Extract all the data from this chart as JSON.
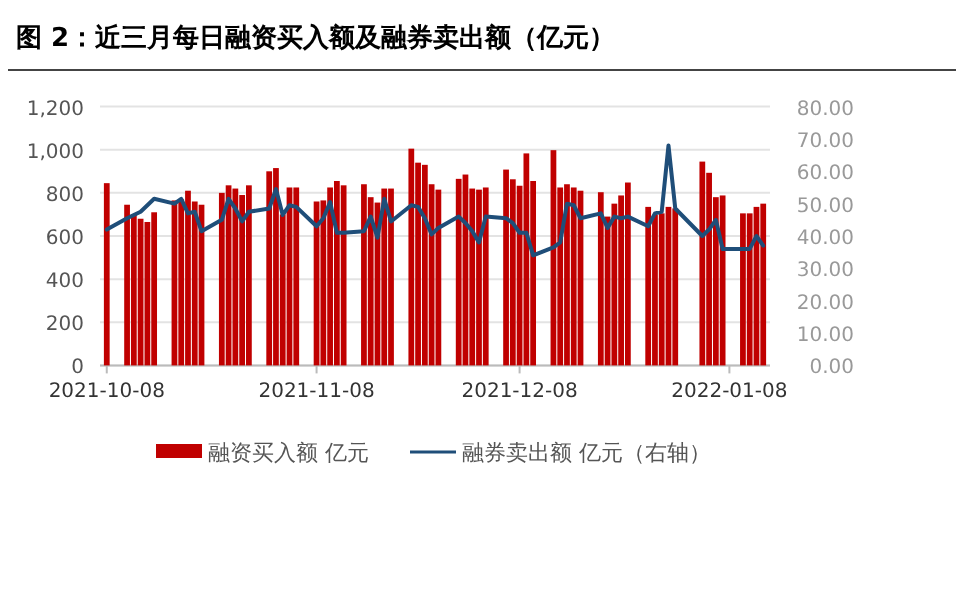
{
  "chart_data": {
    "type": "bar",
    "title": "图 2：近三月每日融资买入额及融券卖出额（亿元）",
    "x": [
      "2021-10-08",
      "2021-10-11",
      "2021-10-12",
      "2021-10-13",
      "2021-10-14",
      "2021-10-15",
      "2021-10-18",
      "2021-10-19",
      "2021-10-20",
      "2021-10-21",
      "2021-10-22",
      "2021-10-25",
      "2021-10-26",
      "2021-10-27",
      "2021-10-28",
      "2021-10-29",
      "2021-11-01",
      "2021-11-02",
      "2021-11-03",
      "2021-11-04",
      "2021-11-05",
      "2021-11-08",
      "2021-11-09",
      "2021-11-10",
      "2021-11-11",
      "2021-11-12",
      "2021-11-15",
      "2021-11-16",
      "2021-11-17",
      "2021-11-18",
      "2021-11-19",
      "2021-11-22",
      "2021-11-23",
      "2021-11-24",
      "2021-11-25",
      "2021-11-26",
      "2021-11-29",
      "2021-11-30",
      "2021-12-01",
      "2021-12-02",
      "2021-12-03",
      "2021-12-06",
      "2021-12-07",
      "2021-12-08",
      "2021-12-09",
      "2021-12-10",
      "2021-12-13",
      "2021-12-14",
      "2021-12-15",
      "2021-12-16",
      "2021-12-17",
      "2021-12-20",
      "2021-12-21",
      "2021-12-22",
      "2021-12-23",
      "2021-12-24",
      "2021-12-27",
      "2021-12-28",
      "2021-12-29",
      "2021-12-30",
      "2021-12-31",
      "2022-01-04",
      "2022-01-05",
      "2022-01-06",
      "2022-01-07",
      "2022-01-10",
      "2022-01-11",
      "2022-01-12",
      "2022-01-13"
    ],
    "series": [
      {
        "name": "融资买入额 亿元",
        "color": "#c00000",
        "values": [
          845,
          745,
          700,
          680,
          665,
          710,
          765,
          770,
          810,
          760,
          745,
          800,
          835,
          820,
          790,
          835,
          900,
          915,
          700,
          825,
          825,
          760,
          765,
          825,
          855,
          835,
          840,
          780,
          755,
          820,
          820,
          1005,
          940,
          930,
          840,
          815,
          865,
          885,
          820,
          815,
          825,
          908,
          863,
          833,
          983,
          855,
          998,
          825,
          840,
          825,
          810,
          803,
          690,
          750,
          788,
          848,
          735,
          698,
          705,
          735,
          728,
          945,
          893,
          780,
          788,
          705,
          705,
          735,
          750
        ]
      },
      {
        "name": "融券卖出额 亿元（右轴）",
        "type": "line",
        "axis": "y2",
        "color": "#1f4e79",
        "values": [
          42,
          45.5,
          46.5,
          47.5,
          49.5,
          51.5,
          50,
          51.5,
          47,
          47.5,
          41.5,
          45,
          51.5,
          48.5,
          44.5,
          47.5,
          48.5,
          54.5,
          46.5,
          49.5,
          49,
          43,
          45.5,
          50.5,
          41,
          41,
          41.5,
          46,
          39.5,
          51.5,
          44.5,
          49.5,
          49,
          45.5,
          40.5,
          42.5,
          46,
          44,
          41.5,
          38,
          46,
          45.5,
          44,
          41,
          41,
          34,
          36.5,
          38,
          50,
          49.5,
          45.5,
          47,
          42.5,
          46,
          45.5,
          46,
          43,
          47,
          47.5,
          68,
          48.5,
          40,
          42,
          45,
          36,
          36,
          36,
          40,
          37
        ]
      }
    ],
    "xlim": [
      "2021-10-07",
      "2022-01-14"
    ],
    "xticks": [
      "2021-10-08",
      "2021-11-08",
      "2021-12-08",
      "2022-01-08"
    ],
    "ylim": [
      0,
      1200
    ],
    "yticks": [
      0,
      200,
      400,
      600,
      800,
      {
        "value": 1000,
        "label": "1,000"
      },
      {
        "value": 1200,
        "label": "1,200"
      }
    ],
    "y2lim": [
      0,
      80
    ],
    "y2ticks": [
      {
        "value": 0,
        "label": "0.00"
      },
      {
        "value": 10,
        "label": "10.00"
      },
      {
        "value": 20,
        "label": "20.00"
      },
      {
        "value": 30,
        "label": "30.00"
      },
      {
        "value": 40,
        "label": "40.00"
      },
      {
        "value": 50,
        "label": "50.00"
      },
      {
        "value": 60,
        "label": "60.00"
      },
      {
        "value": 70,
        "label": "70.00"
      },
      {
        "value": 80,
        "label": "80.00"
      }
    ],
    "grid": "y",
    "legend": "bottom",
    "line_style": "solid"
  }
}
